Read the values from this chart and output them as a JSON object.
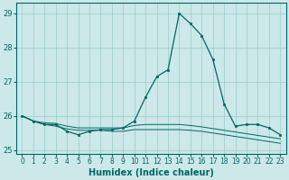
{
  "xlabel": "Humidex (Indice chaleur)",
  "xlim": [
    -0.5,
    23.5
  ],
  "ylim": [
    24.9,
    29.3
  ],
  "yticks": [
    25,
    26,
    27,
    28,
    29
  ],
  "xticks": [
    0,
    1,
    2,
    3,
    4,
    5,
    6,
    7,
    8,
    9,
    10,
    11,
    12,
    13,
    14,
    15,
    16,
    17,
    18,
    19,
    20,
    21,
    22,
    23
  ],
  "bg_color": "#cce8e8",
  "grid_color": "#99cccc",
  "line_color": "#006666",
  "series1": [
    26.0,
    25.85,
    25.75,
    25.75,
    25.55,
    25.45,
    25.55,
    25.6,
    25.6,
    25.65,
    25.85,
    26.55,
    27.15,
    27.35,
    29.0,
    28.7,
    28.35,
    27.65,
    26.35,
    25.7,
    25.75,
    25.75,
    25.65,
    25.45
  ],
  "series2": [
    26.0,
    25.85,
    25.8,
    25.78,
    25.7,
    25.65,
    25.65,
    25.65,
    25.65,
    25.65,
    25.72,
    25.75,
    25.75,
    25.75,
    25.75,
    25.72,
    25.68,
    25.63,
    25.58,
    25.53,
    25.48,
    25.43,
    25.38,
    25.33
  ],
  "series3": [
    26.0,
    25.85,
    25.75,
    25.7,
    25.62,
    25.58,
    25.58,
    25.58,
    25.55,
    25.55,
    25.6,
    25.6,
    25.6,
    25.6,
    25.6,
    25.58,
    25.55,
    25.5,
    25.45,
    25.4,
    25.35,
    25.3,
    25.25,
    25.2
  ]
}
